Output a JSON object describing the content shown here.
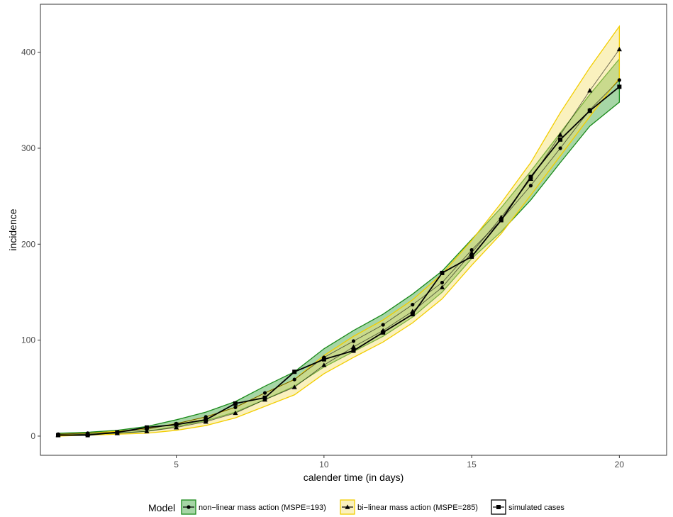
{
  "chart_data": {
    "type": "line",
    "xlabel": "calender time (in days)",
    "ylabel": "incidence",
    "xlim": [
      0.4,
      21.6
    ],
    "ylim": [
      -20,
      450
    ],
    "x_ticks": [
      5,
      10,
      15,
      20
    ],
    "y_ticks": [
      0,
      100,
      200,
      300,
      400
    ],
    "grid": false,
    "legend_position": "bottom",
    "legend_title": "Model",
    "x": [
      1,
      2,
      3,
      4,
      5,
      6,
      7,
      8,
      9,
      10,
      11,
      12,
      13,
      14,
      15,
      16,
      17,
      18,
      19,
      20
    ],
    "series": [
      {
        "name": "non−linear mass action (MSPE=193)",
        "marker": "circle",
        "line_color": "#000000",
        "band_fill": "#3aa33a",
        "band_stroke": "#1a8a1a",
        "values": [
          2,
          3,
          4,
          7,
          13,
          20,
          30,
          45,
          59,
          82,
          99,
          116,
          137,
          160,
          194,
          225,
          261,
          300,
          340,
          371
        ],
        "lower": [
          1,
          2,
          3,
          5,
          10,
          16,
          25,
          38,
          52,
          72,
          88,
          104,
          124,
          150,
          185,
          213,
          246,
          285,
          323,
          348
        ],
        "upper": [
          3,
          4,
          6,
          10,
          17,
          25,
          36,
          52,
          67,
          91,
          110,
          127,
          148,
          172,
          205,
          238,
          276,
          316,
          356,
          393
        ]
      },
      {
        "name": "bi−linear mass action (MSPE=285)",
        "marker": "triangle",
        "line_color": "#000000",
        "band_fill": "#f5e06e",
        "band_stroke": "#f2cd00",
        "values": [
          1,
          2,
          3,
          5,
          9,
          15,
          24,
          38,
          51,
          74,
          93,
          110,
          130,
          155,
          191,
          228,
          268,
          314,
          360,
          403
        ],
        "lower": [
          0,
          1,
          2,
          3,
          6,
          11,
          19,
          31,
          43,
          65,
          82,
          98,
          118,
          143,
          178,
          211,
          251,
          292,
          333,
          373
        ],
        "upper": [
          2,
          3,
          5,
          8,
          13,
          20,
          30,
          45,
          59,
          84,
          104,
          121,
          142,
          169,
          204,
          243,
          285,
          337,
          384,
          427
        ]
      },
      {
        "name": "simulated cases",
        "marker": "square",
        "line_color": "#000000",
        "values": [
          1,
          1,
          4,
          9,
          12,
          17,
          34,
          40,
          67,
          80,
          89,
          108,
          127,
          170,
          187,
          225,
          270,
          309,
          339,
          364
        ]
      }
    ]
  }
}
